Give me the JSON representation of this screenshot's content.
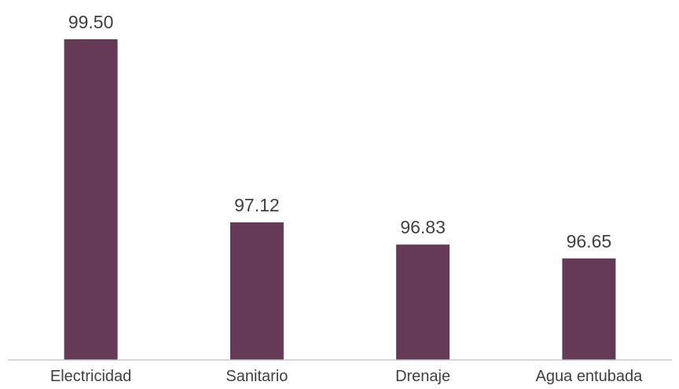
{
  "chart_data": {
    "type": "bar",
    "categories": [
      "Electricidad",
      "Sanitario",
      "Drenaje",
      "Agua entubada"
    ],
    "values": [
      99.5,
      97.12,
      96.83,
      96.65
    ],
    "data_labels": [
      "99.50",
      "97.12",
      "96.83",
      "96.65"
    ],
    "title": "",
    "xlabel": "",
    "ylabel": "",
    "ylim": [
      95.33,
      99.5
    ],
    "grid": false,
    "legend": "none",
    "bar_color": "#643a57"
  }
}
